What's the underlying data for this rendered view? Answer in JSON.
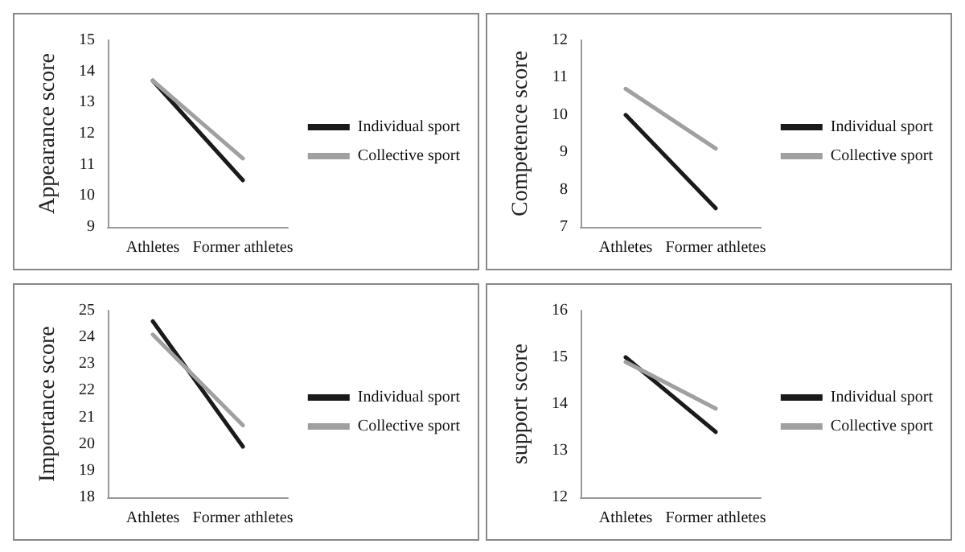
{
  "chart_data": [
    {
      "type": "line",
      "ylabel": "Appearance score",
      "categories": [
        "Athletes",
        "Former athletes"
      ],
      "series": [
        {
          "name": "Individual sport",
          "color": "#1a1a1a",
          "values": [
            13.7,
            10.5
          ]
        },
        {
          "name": "Collective sport",
          "color": "#a0a0a0",
          "values": [
            13.7,
            11.2
          ]
        }
      ],
      "ylim": [
        9,
        15
      ],
      "yticks": [
        9,
        10,
        11,
        12,
        13,
        14,
        15
      ],
      "grid": false,
      "legend": "right",
      "marker": "none"
    },
    {
      "type": "line",
      "ylabel": "Competence score",
      "categories": [
        "Athletes",
        "Former athletes"
      ],
      "series": [
        {
          "name": "Individual sport",
          "color": "#1a1a1a",
          "values": [
            10.0,
            7.5
          ]
        },
        {
          "name": "Collective sport",
          "color": "#a0a0a0",
          "values": [
            10.7,
            9.1
          ]
        }
      ],
      "ylim": [
        7,
        12
      ],
      "yticks": [
        7,
        8,
        9,
        10,
        11,
        12
      ],
      "grid": false,
      "legend": "right",
      "marker": "none"
    },
    {
      "type": "line",
      "ylabel": "Importance score",
      "categories": [
        "Athletes",
        "Former athletes"
      ],
      "series": [
        {
          "name": "Individual sport",
          "color": "#1a1a1a",
          "values": [
            24.6,
            19.9
          ]
        },
        {
          "name": "Collective sport",
          "color": "#a0a0a0",
          "values": [
            24.1,
            20.7
          ]
        }
      ],
      "ylim": [
        18,
        25
      ],
      "yticks": [
        18,
        19,
        20,
        21,
        22,
        23,
        24,
        25
      ],
      "grid": false,
      "legend": "right",
      "marker": "none"
    },
    {
      "type": "line",
      "ylabel": "support score",
      "categories": [
        "Athletes",
        "Former athletes"
      ],
      "series": [
        {
          "name": "Individual sport",
          "color": "#1a1a1a",
          "values": [
            15.0,
            13.4
          ]
        },
        {
          "name": "Collective sport",
          "color": "#a0a0a0",
          "values": [
            14.9,
            13.9
          ]
        }
      ],
      "ylim": [
        12,
        16
      ],
      "yticks": [
        12,
        13,
        14,
        15,
        16
      ],
      "grid": false,
      "legend": "right",
      "marker": "none"
    }
  ]
}
